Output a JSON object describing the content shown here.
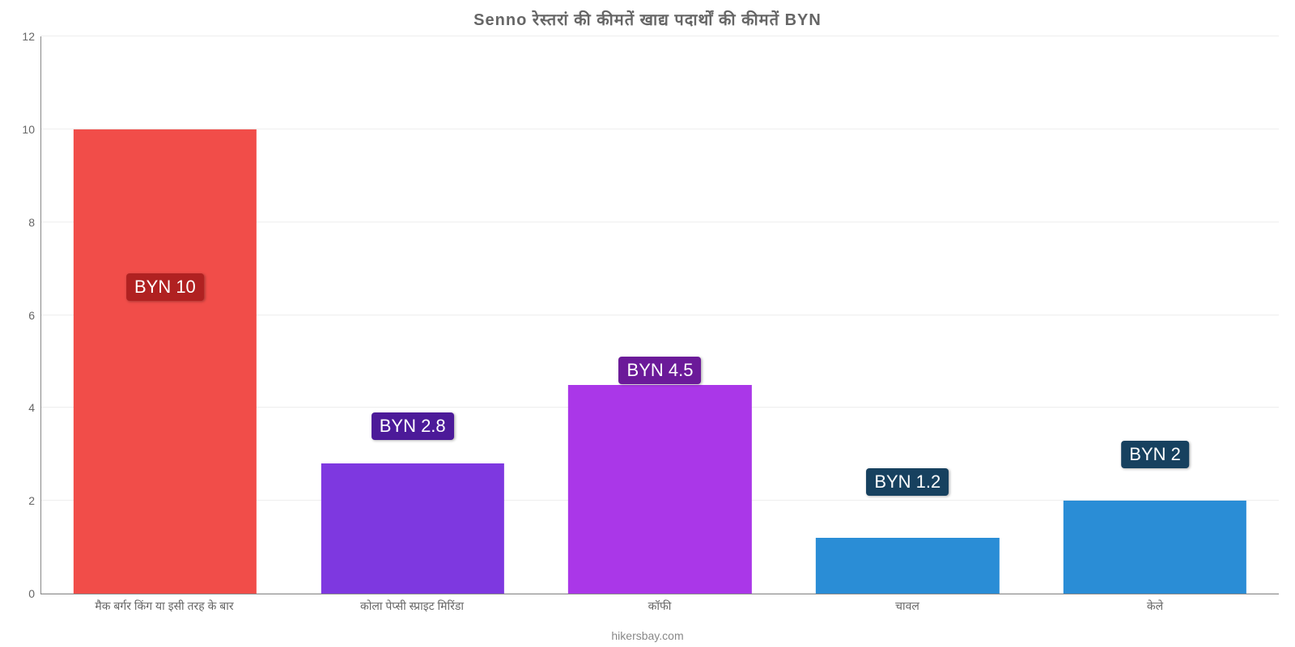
{
  "chart": {
    "type": "bar",
    "title": "Senno रेस्तरां    की    कीमतें    खाद्य    पदार्थों    की    कीमतें    BYN",
    "title_fontsize": 20,
    "title_color": "#666666",
    "background_color": "#ffffff",
    "grid_color": "#eeeeee",
    "axis_color": "#888888",
    "ylim": [
      0,
      12
    ],
    "ytick_step": 2,
    "yticks": [
      0,
      2,
      4,
      6,
      8,
      10,
      12
    ],
    "tick_fontsize": 14,
    "tick_color": "#666666",
    "bar_width_pct": 74,
    "value_prefix": "BYN ",
    "value_fontsize": 22,
    "badge_text_color": "#ffffff",
    "categories": [
      "मैक बर्गर किंग या इसी तरह के बार",
      "कोला पेप्सी स्प्राइट मिरिंडा",
      "कॉफी",
      "चावल",
      "केले"
    ],
    "values": [
      10,
      2.8,
      4.5,
      1.2,
      2
    ],
    "value_labels": [
      "BYN 10",
      "BYN 2.8",
      "BYN 4.5",
      "BYN 1.2",
      "BYN 2"
    ],
    "bar_colors": [
      "#f14d49",
      "#7e38e0",
      "#aa37e8",
      "#2a8dd6",
      "#2a8dd6"
    ],
    "badge_colors": [
      "#b02121",
      "#4c1a99",
      "#6b1a99",
      "#17415f",
      "#17415f"
    ],
    "badge_y_ratio": [
      0.55,
      0.3,
      0.4,
      0.2,
      0.25
    ],
    "source_text": "hikersbay.com",
    "source_fontsize": 14,
    "source_color": "#888888"
  }
}
